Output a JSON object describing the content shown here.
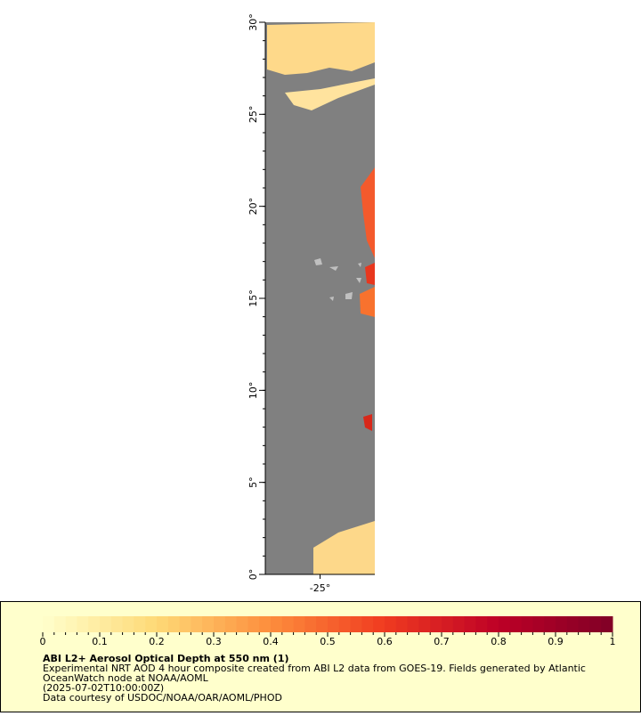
{
  "map": {
    "lat_lim": [
      0,
      30
    ],
    "lon_lim": [
      -28,
      -22
    ],
    "lat_ticks": [
      {
        "value": 0,
        "label": "0°"
      },
      {
        "value": 5,
        "label": "5°"
      },
      {
        "value": 10,
        "label": "10°"
      },
      {
        "value": 15,
        "label": "15°"
      },
      {
        "value": 20,
        "label": "20°"
      },
      {
        "value": 25,
        "label": "25°"
      },
      {
        "value": 30,
        "label": "30°"
      }
    ],
    "lon_ticks": [
      {
        "value": -25,
        "label": "-25°"
      }
    ]
  },
  "legend": {
    "title": "ABI L2+ Aerosol Optical Depth at 550 nm (1)",
    "lim": [
      0,
      1
    ],
    "ticks": [
      0,
      0.1,
      0.2,
      0.3,
      0.4,
      0.5,
      0.6,
      0.7,
      0.8,
      0.9,
      1
    ],
    "lines": [
      "Experimental NRT AOD 4 hour composite created from ABI L2 data from GOES-19. Fields generated by Atlantic",
      "OceanWatch node at NOAA/AOML",
      "(2025-07-02T10:00:00Z)",
      "Data courtesy of USDOC/NOAA/OAR/AOML/PHOD"
    ]
  }
}
